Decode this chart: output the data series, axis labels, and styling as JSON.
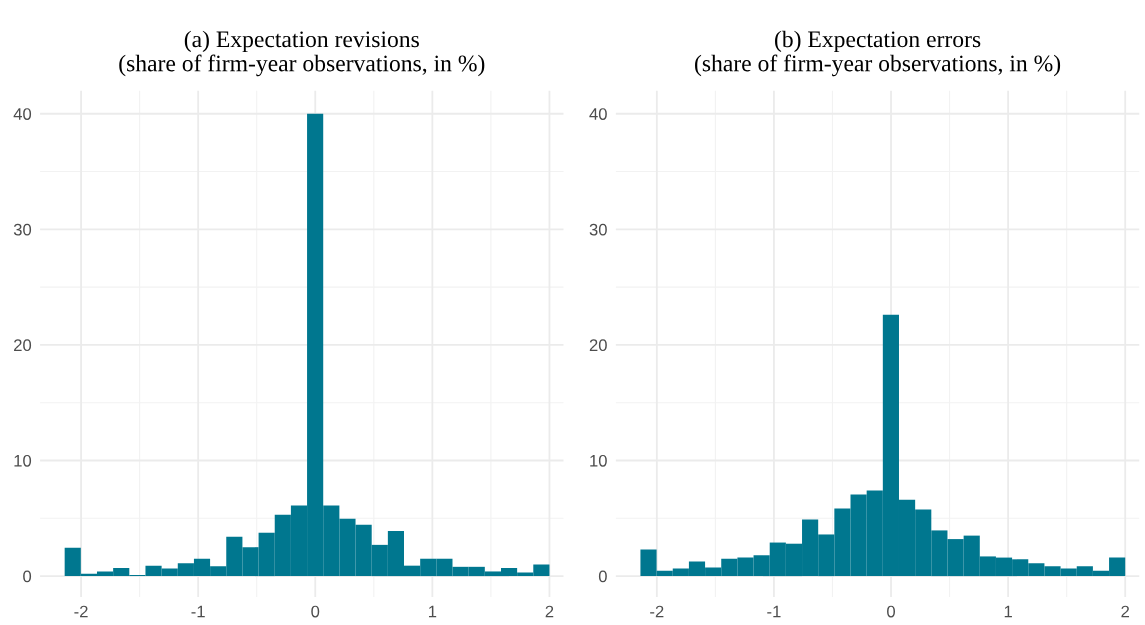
{
  "chart_data": [
    {
      "type": "histogram",
      "title": "(a) Expectation revisions\n(share of firm-year observations, in %)",
      "color": "#00778f",
      "bins": [
        -2.14,
        -2.002,
        -1.864,
        -1.726,
        -1.588,
        -1.45,
        -1.312,
        -1.174,
        -1.036,
        -0.898,
        -0.76,
        -0.622,
        -0.484,
        -0.346,
        -0.208,
        -0.07,
        0.068,
        0.206,
        0.344,
        0.482,
        0.62,
        0.758,
        0.896,
        1.034,
        1.172,
        1.31,
        1.448,
        1.586,
        1.724,
        1.862,
        2.0
      ],
      "values": [
        2.45,
        0.2,
        0.4,
        0.7,
        0.1,
        0.9,
        0.65,
        1.1,
        1.5,
        0.85,
        3.4,
        2.5,
        3.75,
        5.3,
        6.1,
        40,
        6.1,
        4.95,
        4.45,
        2.7,
        3.9,
        0.9,
        1.5,
        1.5,
        0.8,
        0.8,
        0.4,
        0.7,
        0.3,
        1.0
      ],
      "xlim": [
        -2.35,
        2.12
      ],
      "ylim": [
        -1.8,
        42
      ],
      "xticks": [
        -2,
        -1,
        0,
        1,
        2
      ],
      "yticks": [
        0,
        10,
        20,
        30,
        40
      ],
      "grid": true
    },
    {
      "type": "histogram",
      "title": "(b) Expectation errors\n(share of firm-year observations, in %)",
      "color": "#00778f",
      "bins": [
        -2.14,
        -2.002,
        -1.864,
        -1.726,
        -1.588,
        -1.45,
        -1.312,
        -1.174,
        -1.036,
        -0.898,
        -0.76,
        -0.622,
        -0.484,
        -0.346,
        -0.208,
        -0.07,
        0.068,
        0.206,
        0.344,
        0.482,
        0.62,
        0.758,
        0.896,
        1.034,
        1.172,
        1.31,
        1.448,
        1.586,
        1.724,
        1.862,
        2.0
      ],
      "values": [
        2.3,
        0.45,
        0.65,
        1.25,
        0.75,
        1.5,
        1.6,
        1.8,
        2.9,
        2.8,
        4.9,
        3.6,
        5.85,
        7.05,
        7.4,
        22.6,
        6.6,
        5.75,
        3.95,
        3.2,
        3.5,
        1.7,
        1.6,
        1.45,
        1.1,
        0.85,
        0.65,
        0.85,
        0.45,
        1.6
      ],
      "xlim": [
        -2.35,
        2.12
      ],
      "ylim": [
        -1.8,
        42
      ],
      "xticks": [
        -2,
        -1,
        0,
        1,
        2
      ],
      "yticks": [
        0,
        10,
        20,
        30,
        40
      ],
      "grid": true
    }
  ]
}
